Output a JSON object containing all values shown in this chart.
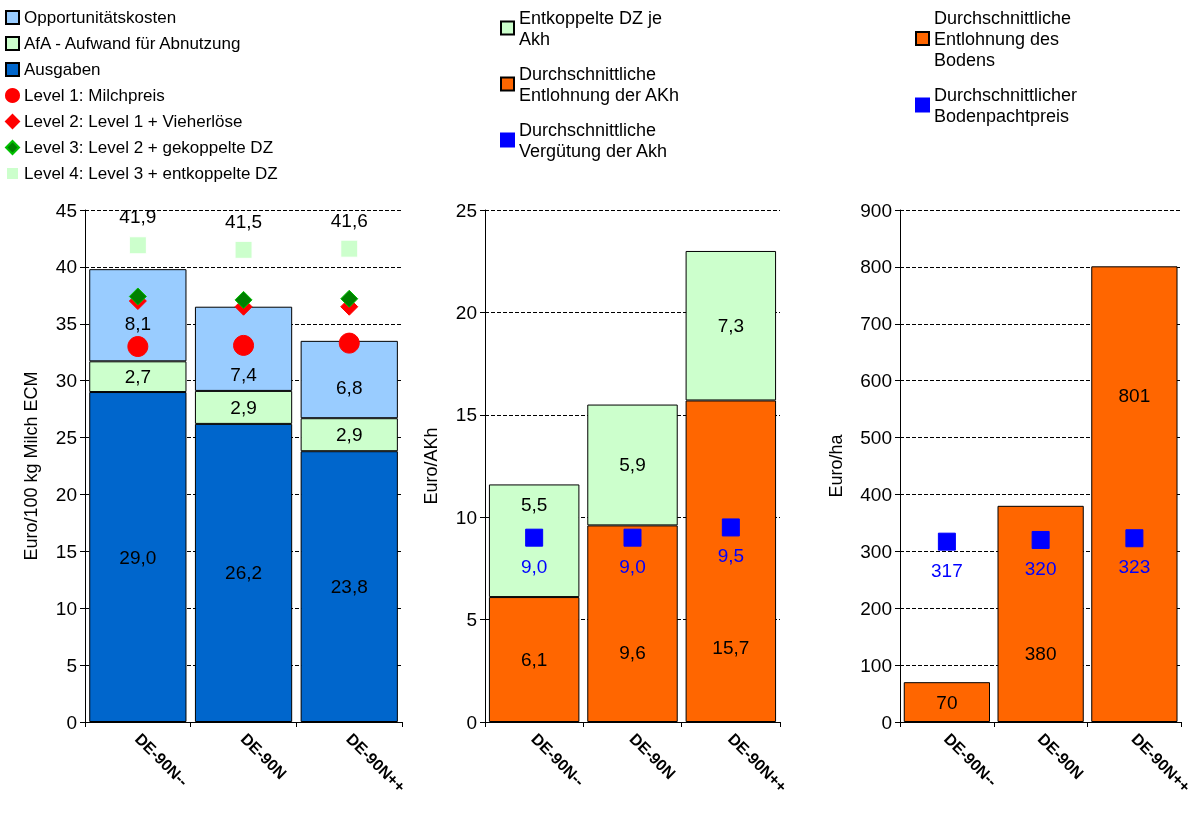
{
  "chart_data": [
    {
      "type": "bar",
      "stacked": true,
      "ylabel": "Euro/100 kg Milch ECM",
      "categories": [
        "DE-90N--",
        "DE-90N",
        "DE-90N++"
      ],
      "ylim": [
        0,
        45
      ],
      "yticks": [
        0,
        5,
        10,
        15,
        20,
        25,
        30,
        35,
        40,
        45
      ],
      "grid": "y",
      "legend": "top",
      "series": [
        {
          "name": "Ausgaben",
          "color": "#0066cc",
          "values": [
            29.0,
            26.2,
            23.8
          ],
          "value_labels": [
            "29,0",
            "26,2",
            "23,8"
          ]
        },
        {
          "name": "AfA - Aufwand für Abnutzung",
          "color": "#ccffcc",
          "values": [
            2.7,
            2.9,
            2.9
          ],
          "value_labels": [
            "2,7",
            "2,9",
            "2,9"
          ]
        },
        {
          "name": "Opportunitätskosten",
          "color": "#99ccff",
          "values": [
            8.1,
            7.4,
            6.8
          ],
          "value_labels": [
            "8,1",
            "7,4",
            "6,8"
          ]
        },
        {
          "name": "Level 1: Milchpreis",
          "type": "scatter",
          "marker": "circle",
          "color": "#ff0000",
          "values": [
            33.0,
            33.1,
            33.3
          ]
        },
        {
          "name": "Level 2: Level 1 + Vieherlöse",
          "type": "scatter",
          "marker": "diamond",
          "color": "#ff0000",
          "values": [
            37.0,
            36.5,
            36.5
          ]
        },
        {
          "name": "Level 3: Level 2 + gekoppelte DZ",
          "type": "scatter",
          "marker": "diamond",
          "color": "#008000",
          "values": [
            37.4,
            37.1,
            37.2
          ]
        },
        {
          "name": "Level 4: Level 3 + entkoppelte DZ",
          "type": "scatter",
          "marker": "square",
          "color": "#ccffcc",
          "values": [
            41.9,
            41.5,
            41.6
          ],
          "value_labels": [
            "41,9",
            "41,5",
            "41,6"
          ]
        }
      ]
    },
    {
      "type": "bar",
      "stacked": true,
      "ylabel": "Euro/AKh",
      "categories": [
        "DE-90N--",
        "DE-90N",
        "DE-90N++"
      ],
      "ylim": [
        0,
        25
      ],
      "yticks": [
        0,
        5,
        10,
        15,
        20,
        25
      ],
      "grid": "y",
      "legend": "top",
      "series": [
        {
          "name": "Durchschnittliche Entlohnung der AKh",
          "color": "#ff6600",
          "values": [
            6.1,
            9.6,
            15.7
          ],
          "value_labels": [
            "6,1",
            "9,6",
            "15,7"
          ]
        },
        {
          "name": "Entkoppelte DZ je Akh",
          "color": "#ccffcc",
          "values": [
            5.5,
            5.9,
            7.3
          ],
          "value_labels": [
            "5,5",
            "5,9",
            "7,3"
          ]
        },
        {
          "name": "Durchschnittliche Vergütung der Akh",
          "type": "scatter",
          "marker": "square",
          "color": "#0000ff",
          "values": [
            9.0,
            9.0,
            9.5
          ],
          "value_labels": [
            "9,0",
            "9,0",
            "9,5"
          ]
        }
      ]
    },
    {
      "type": "bar",
      "ylabel": "Euro/ha",
      "categories": [
        "DE-90N--",
        "DE-90N",
        "DE-90N++"
      ],
      "ylim": [
        0,
        900
      ],
      "yticks": [
        0,
        100,
        200,
        300,
        400,
        500,
        600,
        700,
        800,
        900
      ],
      "grid": "y",
      "legend": "top",
      "series": [
        {
          "name": "Durchschnittliche Entlohnung des Bodens",
          "color": "#ff6600",
          "values": [
            70,
            380,
            801
          ],
          "value_labels": [
            "70",
            "380",
            "801"
          ]
        },
        {
          "name": "Durchschnittlicher Bodenpachtpreis",
          "type": "scatter",
          "marker": "square",
          "color": "#0000ff",
          "values": [
            317,
            320,
            323
          ],
          "value_labels": [
            "317",
            "320",
            "323"
          ]
        }
      ]
    }
  ]
}
